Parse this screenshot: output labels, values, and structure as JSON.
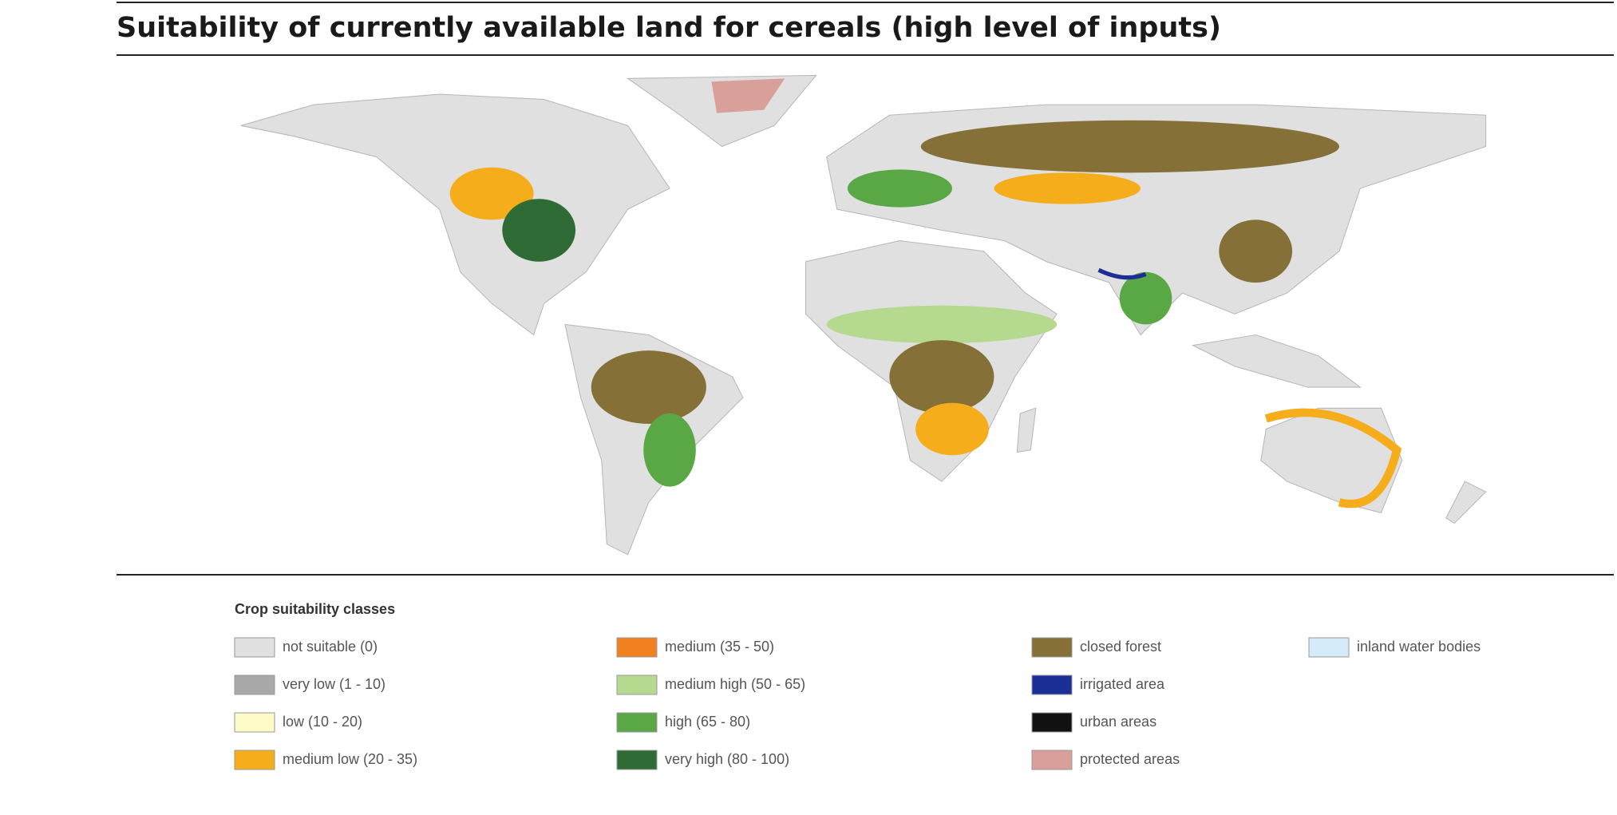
{
  "title": "Suitability of currently available land for cereals (high level of inputs)",
  "legend": {
    "title": "Crop suitability classes",
    "items": [
      {
        "label": "not suitable (0)",
        "color": "#e0e0e0"
      },
      {
        "label": "very low (1 - 10)",
        "color": "#a8a8a8"
      },
      {
        "label": "low (10 - 20)",
        "color": "#fdfbc8"
      },
      {
        "label": "medium low (20 - 35)",
        "color": "#f5ad1b"
      },
      {
        "label": "medium (35 - 50)",
        "color": "#f08020"
      },
      {
        "label": "medium high (50 - 65)",
        "color": "#b5d98f"
      },
      {
        "label": "high (65 - 80)",
        "color": "#5aa845"
      },
      {
        "label": "very high (80 - 100)",
        "color": "#2e6b35"
      },
      {
        "label": "closed forest",
        "color": "#857037"
      },
      {
        "label": "irrigated area",
        "color": "#1c2f96"
      },
      {
        "label": "urban areas",
        "color": "#111111"
      },
      {
        "label": "protected areas",
        "color": "#d9a09a"
      },
      {
        "label": "inland water bodies",
        "color": "#d4ecfa"
      }
    ]
  }
}
